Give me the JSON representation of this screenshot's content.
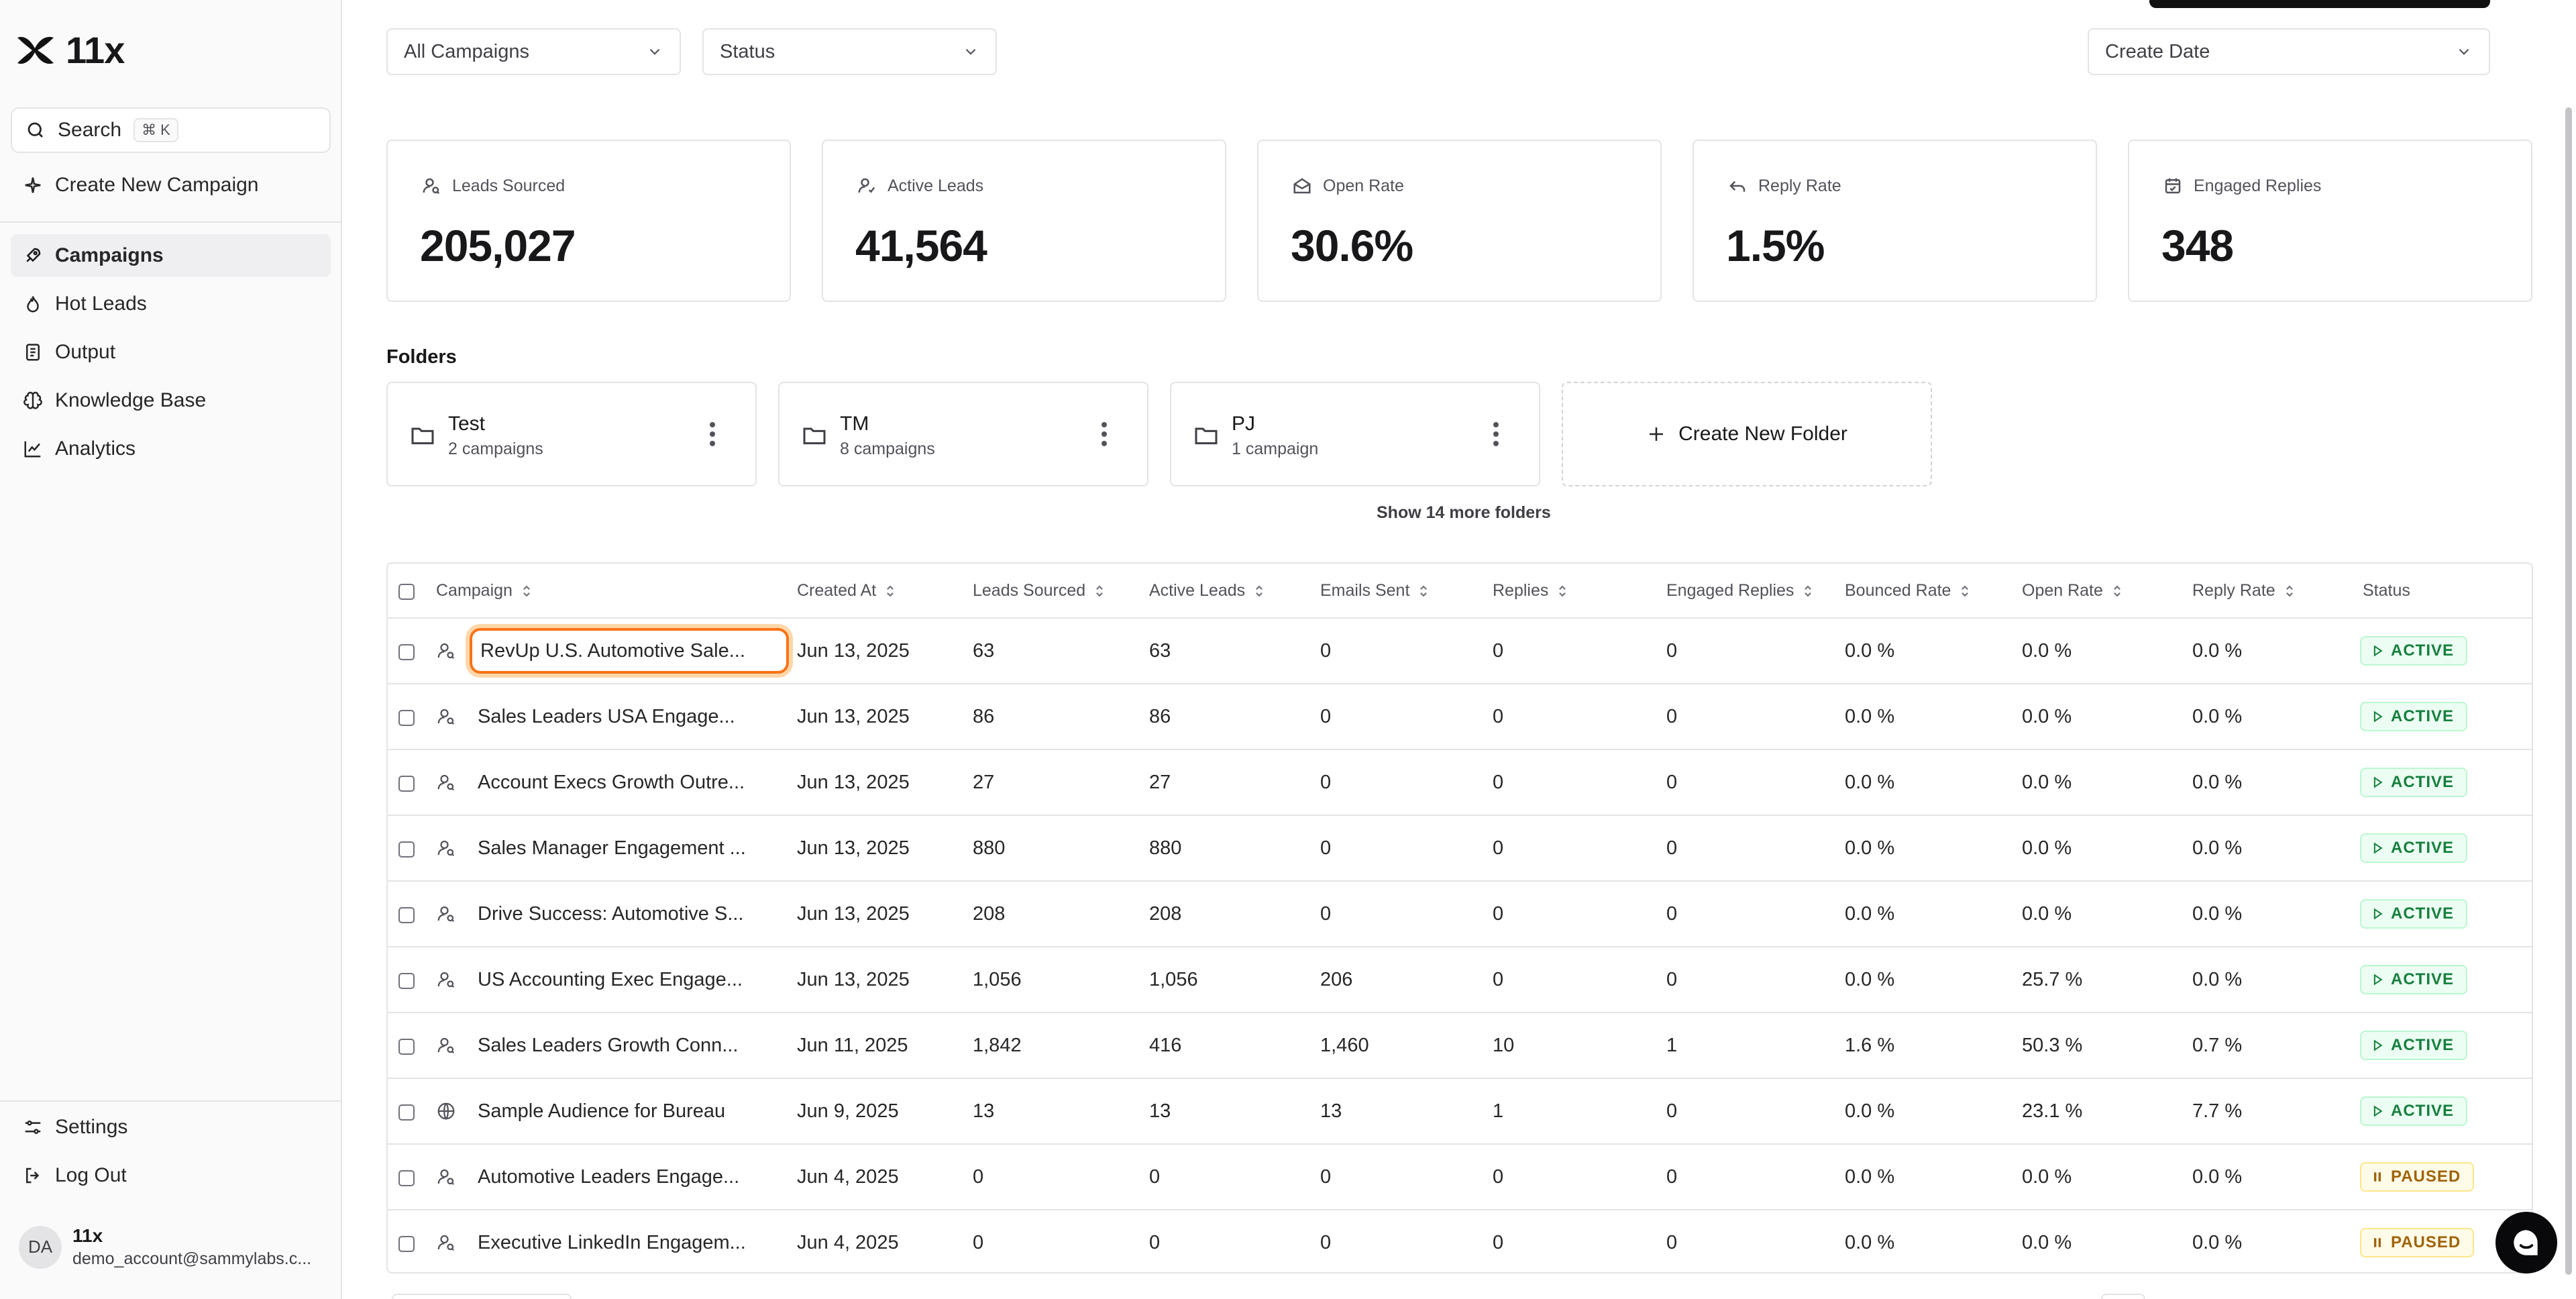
{
  "app": {
    "name": "11x"
  },
  "sidebar": {
    "search_label": "Search",
    "search_shortcut": "⌘ K",
    "create_campaign": "Create New Campaign",
    "nav": [
      {
        "label": "Campaigns",
        "icon": "rocket-icon",
        "active": true
      },
      {
        "label": "Hot Leads",
        "icon": "flame-icon"
      },
      {
        "label": "Output",
        "icon": "document-icon"
      },
      {
        "label": "Knowledge Base",
        "icon": "brain-icon"
      },
      {
        "label": "Analytics",
        "icon": "chart-line-icon"
      }
    ],
    "settings": "Settings",
    "logout": "Log Out",
    "user": {
      "initials": "DA",
      "name": "11x",
      "email": "demo_account@sammylabs.c..."
    }
  },
  "filters": {
    "campaigns": "All Campaigns",
    "status": "Status",
    "date": "Create Date"
  },
  "stats": [
    {
      "label": "Leads Sourced",
      "value": "205,027",
      "icon": "user-search-icon"
    },
    {
      "label": "Active Leads",
      "value": "41,564",
      "icon": "user-check-icon"
    },
    {
      "label": "Open Rate",
      "value": "30.6%",
      "icon": "mail-open-icon"
    },
    {
      "label": "Reply Rate",
      "value": "1.5%",
      "icon": "reply-icon"
    },
    {
      "label": "Engaged Replies",
      "value": "348",
      "icon": "calendar-check-icon"
    }
  ],
  "folders": {
    "title": "Folders",
    "items": [
      {
        "name": "Test",
        "count": "2 campaigns"
      },
      {
        "name": "TM",
        "count": "8 campaigns"
      },
      {
        "name": "PJ",
        "count": "1 campaign"
      }
    ],
    "create_label": "Create New Folder",
    "show_more": "Show 14 more folders"
  },
  "table": {
    "columns": [
      "Campaign",
      "Created At",
      "Leads Sourced",
      "Active Leads",
      "Emails Sent",
      "Replies",
      "Engaged Replies",
      "Bounced Rate",
      "Open Rate",
      "Reply Rate",
      "Status"
    ],
    "rows": [
      {
        "icon": "user-icon",
        "campaign": "RevUp U.S. Automotive Sale...",
        "created": "Jun 13, 2025",
        "leads": "63",
        "active": "63",
        "emails": "0",
        "replies": "0",
        "engaged": "0",
        "bounced": "0.0 %",
        "open": "0.0 %",
        "reply": "0.0 %",
        "status": "ACTIVE"
      },
      {
        "icon": "user-icon",
        "campaign": "Sales Leaders USA Engage...",
        "created": "Jun 13, 2025",
        "leads": "86",
        "active": "86",
        "emails": "0",
        "replies": "0",
        "engaged": "0",
        "bounced": "0.0 %",
        "open": "0.0 %",
        "reply": "0.0 %",
        "status": "ACTIVE"
      },
      {
        "icon": "user-icon",
        "campaign": "Account Execs Growth Outre...",
        "created": "Jun 13, 2025",
        "leads": "27",
        "active": "27",
        "emails": "0",
        "replies": "0",
        "engaged": "0",
        "bounced": "0.0 %",
        "open": "0.0 %",
        "reply": "0.0 %",
        "status": "ACTIVE"
      },
      {
        "icon": "user-icon",
        "campaign": "Sales Manager Engagement ...",
        "created": "Jun 13, 2025",
        "leads": "880",
        "active": "880",
        "emails": "0",
        "replies": "0",
        "engaged": "0",
        "bounced": "0.0 %",
        "open": "0.0 %",
        "reply": "0.0 %",
        "status": "ACTIVE"
      },
      {
        "icon": "user-icon",
        "campaign": "Drive Success: Automotive S...",
        "created": "Jun 13, 2025",
        "leads": "208",
        "active": "208",
        "emails": "0",
        "replies": "0",
        "engaged": "0",
        "bounced": "0.0 %",
        "open": "0.0 %",
        "reply": "0.0 %",
        "status": "ACTIVE"
      },
      {
        "icon": "user-icon",
        "campaign": "US Accounting Exec Engage...",
        "created": "Jun 13, 2025",
        "leads": "1,056",
        "active": "1,056",
        "emails": "206",
        "replies": "0",
        "engaged": "0",
        "bounced": "0.0 %",
        "open": "25.7 %",
        "reply": "0.0 %",
        "status": "ACTIVE"
      },
      {
        "icon": "user-icon",
        "campaign": "Sales Leaders Growth Conn...",
        "created": "Jun 11, 2025",
        "leads": "1,842",
        "active": "416",
        "emails": "1,460",
        "replies": "10",
        "engaged": "1",
        "bounced": "1.6 %",
        "open": "50.3 %",
        "reply": "0.7 %",
        "status": "ACTIVE"
      },
      {
        "icon": "globe-icon",
        "campaign": "Sample Audience for Bureau",
        "created": "Jun 9, 2025",
        "leads": "13",
        "active": "13",
        "emails": "13",
        "replies": "1",
        "engaged": "0",
        "bounced": "0.0 %",
        "open": "23.1 %",
        "reply": "7.7 %",
        "status": "ACTIVE"
      },
      {
        "icon": "user-icon",
        "campaign": "Automotive Leaders Engage...",
        "created": "Jun 4, 2025",
        "leads": "0",
        "active": "0",
        "emails": "0",
        "replies": "0",
        "engaged": "0",
        "bounced": "0.0 %",
        "open": "0.0 %",
        "reply": "0.0 %",
        "status": "PAUSED"
      },
      {
        "icon": "user-icon",
        "campaign": "Executive LinkedIn Engagem...",
        "created": "Jun 4, 2025",
        "leads": "0",
        "active": "0",
        "emails": "0",
        "replies": "0",
        "engaged": "0",
        "bounced": "0.0 %",
        "open": "0.0 %",
        "reply": "0.0 %",
        "status": "PAUSED"
      }
    ]
  }
}
